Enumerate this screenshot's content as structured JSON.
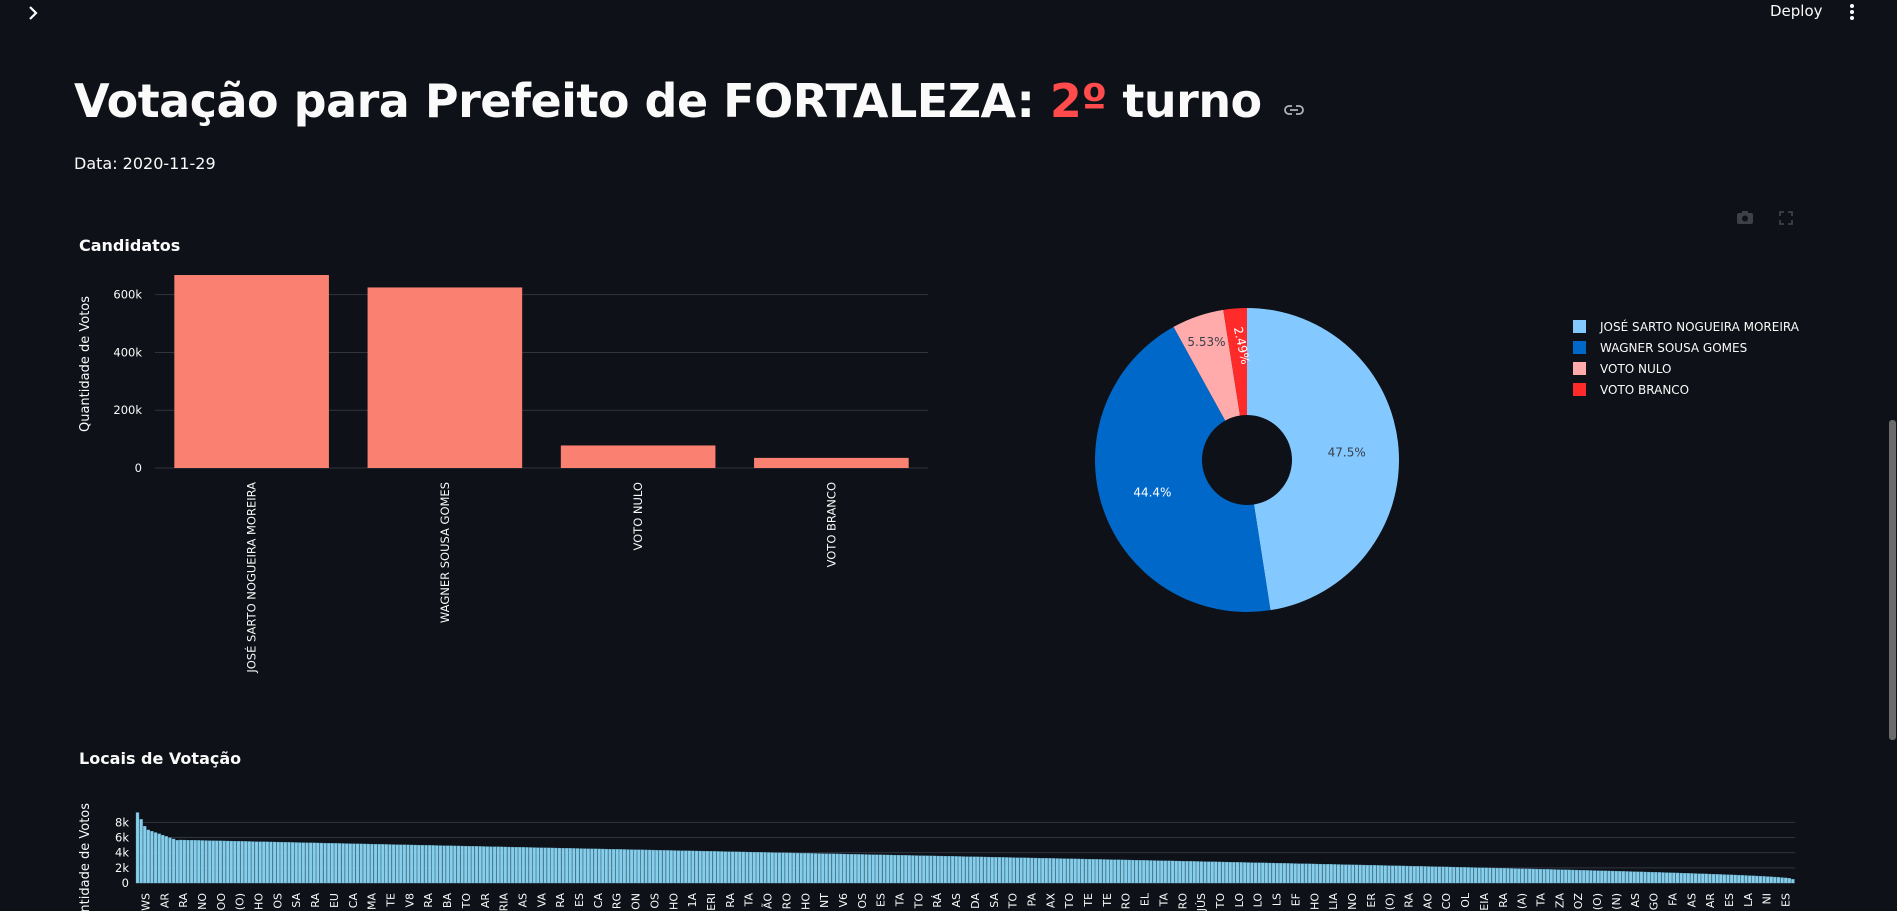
{
  "header": {
    "deploy_label": "Deploy"
  },
  "page": {
    "title_prefix": "Votação para Prefeito de FORTALEZA: ",
    "title_round": "2º",
    "title_suffix": " turno",
    "date_text": "Data: 2020-11-29"
  },
  "colors": {
    "bar": "#fa8072",
    "accent": "#ff4b4b",
    "locais_bar": "#87ceeb"
  },
  "chart_data": [
    {
      "type": "bar",
      "title": "Candidatos",
      "ylabel": "Quantidade de Votos",
      "categories": [
        "JOSÉ SARTO NOGUEIRA MOREIRA",
        "WAGNER SOUSA GOMES",
        "VOTO NULO",
        "VOTO BRANCO"
      ],
      "values": [
        668000,
        625000,
        78000,
        35000
      ],
      "yticks": [
        0,
        200000,
        400000,
        600000
      ],
      "ytick_labels": [
        "0",
        "200k",
        "400k",
        "600k"
      ],
      "ylim": [
        0,
        720000
      ],
      "grid": true
    },
    {
      "type": "pie",
      "hole": true,
      "labels": [
        "JOSÉ SARTO NOGUEIRA MOREIRA",
        "WAGNER SOUSA GOMES",
        "VOTO NULO",
        "VOTO BRANCO"
      ],
      "values": [
        47.5,
        44.4,
        5.53,
        2.49
      ],
      "value_labels": [
        "47.5%",
        "44.4%",
        "5.53%",
        "2.49%"
      ],
      "colors": [
        "#83c9ff",
        "#0068c9",
        "#ffabab",
        "#ff2b2b"
      ],
      "legend_position": "right"
    },
    {
      "type": "bar",
      "title": "Locais de Votação",
      "ylabel": "Quantidade de Votos",
      "yticks": [
        0,
        2000,
        4000,
        6000,
        8000
      ],
      "ytick_labels": [
        "0",
        "2k",
        "4k",
        "6k",
        "8k"
      ],
      "ylim": [
        0,
        9500
      ],
      "categories": [
        "WS",
        "AR",
        "RA",
        "NO",
        "OO",
        "(O)",
        "HO",
        "OS",
        "SA",
        "RA",
        "EU",
        "CA",
        "MA",
        "TE",
        "V8",
        "RA",
        "BA",
        "TO",
        "AR",
        "RIA",
        "AS",
        "VA",
        "RA",
        "ES",
        "CA",
        "RG",
        "ON",
        "OS",
        "HO",
        "1A",
        "ERI",
        "RA",
        "TA",
        "ÃO",
        "RO",
        "HO",
        "NT",
        "V6",
        "OS",
        "ES",
        "TA",
        "TO",
        "RÁ",
        "AS",
        "DA",
        "SA",
        "TO",
        "PA",
        "AX",
        "TO",
        "TE",
        "TE",
        "RO",
        "EL",
        "TA",
        "RO",
        "JÚS",
        "TO",
        "LO",
        "LO",
        "LS",
        "EF",
        "HO",
        "LIA",
        "NO",
        "ER",
        "(O)",
        "RA",
        "AO",
        "CO",
        "OL",
        "EIA",
        "RA",
        "(A)",
        "TA",
        "ZA",
        "OZ",
        "(O)",
        "(N)",
        "AS",
        "GO",
        "FA",
        "AS",
        "AR",
        "ES",
        "LA",
        "NI",
        "ES"
      ],
      "series_summary": "descending"
    }
  ]
}
